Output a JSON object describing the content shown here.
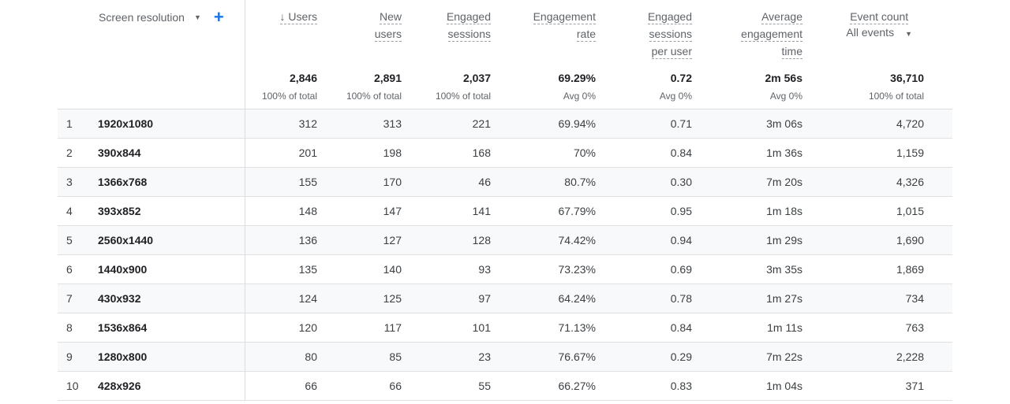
{
  "dimension": {
    "label": "Screen resolution",
    "add_label": "+"
  },
  "columns": [
    {
      "lines": [
        "↓ Users"
      ],
      "total": "2,846",
      "sub": "100% of total"
    },
    {
      "lines": [
        "New",
        "users"
      ],
      "total": "2,891",
      "sub": "100% of total"
    },
    {
      "lines": [
        "Engaged",
        "sessions"
      ],
      "total": "2,037",
      "sub": "100% of total"
    },
    {
      "lines": [
        "Engagement",
        "rate"
      ],
      "total": "69.29%",
      "sub": "Avg 0%"
    },
    {
      "lines": [
        "Engaged",
        "sessions",
        "per user"
      ],
      "total": "0.72",
      "sub": "Avg 0%"
    },
    {
      "lines": [
        "Average",
        "engagement",
        "time"
      ],
      "total": "2m 56s",
      "sub": "Avg 0%"
    },
    {
      "lines": [
        "Event count"
      ],
      "select": "All events",
      "total": "36,710",
      "sub": "100% of total"
    }
  ],
  "rows": [
    [
      "1",
      "1920x1080",
      "312",
      "313",
      "221",
      "69.94%",
      "0.71",
      "3m 06s",
      "4,720"
    ],
    [
      "2",
      "390x844",
      "201",
      "198",
      "168",
      "70%",
      "0.84",
      "1m 36s",
      "1,159"
    ],
    [
      "3",
      "1366x768",
      "155",
      "170",
      "46",
      "80.7%",
      "0.30",
      "7m 20s",
      "4,326"
    ],
    [
      "4",
      "393x852",
      "148",
      "147",
      "141",
      "67.79%",
      "0.95",
      "1m 18s",
      "1,015"
    ],
    [
      "5",
      "2560x1440",
      "136",
      "127",
      "128",
      "74.42%",
      "0.94",
      "1m 29s",
      "1,690"
    ],
    [
      "6",
      "1440x900",
      "135",
      "140",
      "93",
      "73.23%",
      "0.69",
      "3m 35s",
      "1,869"
    ],
    [
      "7",
      "430x932",
      "124",
      "125",
      "97",
      "64.24%",
      "0.78",
      "1m 27s",
      "734"
    ],
    [
      "8",
      "1536x864",
      "120",
      "117",
      "101",
      "71.13%",
      "0.84",
      "1m 11s",
      "763"
    ],
    [
      "9",
      "1280x800",
      "80",
      "85",
      "23",
      "76.67%",
      "0.29",
      "7m 22s",
      "2,228"
    ],
    [
      "10",
      "428x926",
      "66",
      "66",
      "55",
      "66.27%",
      "0.83",
      "1m 04s",
      "371"
    ]
  ]
}
